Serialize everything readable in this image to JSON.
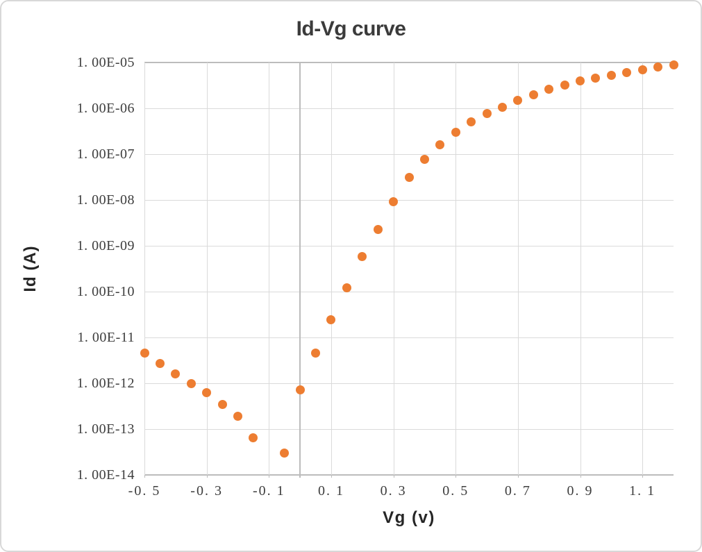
{
  "chart": {
    "title": "Id-Vg curve",
    "y_axis": {
      "title": "Id (A)",
      "scale": "log",
      "tick_labels": [
        "1. 00E-05",
        "1. 00E-06",
        "1. 00E-07",
        "1. 00E-08",
        "1. 00E-09",
        "1. 00E-10",
        "1. 00E-11",
        "1. 00E-12",
        "1. 00E-13",
        "1. 00E-14"
      ]
    },
    "x_axis": {
      "title": "Vg (v)",
      "tick_labels": [
        "-0. 5",
        "-0. 3",
        "-0. 1",
        "0. 1",
        "0. 3",
        "0. 5",
        "0. 7",
        "0. 9",
        "1. 1"
      ]
    }
  },
  "chart_data": {
    "type": "scatter",
    "title": "Id-Vg curve",
    "xlabel": "Vg (v)",
    "ylabel": "Id (A)",
    "x_range": [
      -0.5,
      1.2
    ],
    "x_gridline_interval": 0.2,
    "y_scale": "log",
    "y_range": [
      1e-14,
      1e-05
    ],
    "grid": true,
    "legend": "none",
    "marker_color": "#ED7D31",
    "colors": {
      "gridline": "#DADADA",
      "axis_line": "#BCBCBC",
      "title_text": "#3B3B3B",
      "tick_text": "#3D3D3D"
    },
    "series": [
      {
        "name": "Id",
        "points": [
          [
            -0.5,
            4.6e-12
          ],
          [
            -0.45,
            2.7e-12
          ],
          [
            -0.4,
            1.6e-12
          ],
          [
            -0.35,
            1e-12
          ],
          [
            -0.3,
            6.2e-13
          ],
          [
            -0.25,
            3.5e-13
          ],
          [
            -0.2,
            1.9e-13
          ],
          [
            -0.15,
            6.5e-14
          ],
          [
            -0.05,
            3e-14
          ],
          [
            0.0,
            7.3e-13
          ],
          [
            0.05,
            4.5e-12
          ],
          [
            0.1,
            2.4e-11
          ],
          [
            0.15,
            1.2e-10
          ],
          [
            0.2,
            5.9e-10
          ],
          [
            0.25,
            2.3e-09
          ],
          [
            0.3,
            9.3e-09
          ],
          [
            0.35,
            3.1e-08
          ],
          [
            0.4,
            7.6e-08
          ],
          [
            0.45,
            1.6e-07
          ],
          [
            0.5,
            3e-07
          ],
          [
            0.55,
            5.1e-07
          ],
          [
            0.6,
            7.6e-07
          ],
          [
            0.65,
            1.05e-06
          ],
          [
            0.7,
            1.5e-06
          ],
          [
            0.75,
            2e-06
          ],
          [
            0.8,
            2.6e-06
          ],
          [
            0.85,
            3.2e-06
          ],
          [
            0.9,
            3.9e-06
          ],
          [
            0.95,
            4.5e-06
          ],
          [
            1.0,
            5.2e-06
          ],
          [
            1.05,
            6e-06
          ],
          [
            1.1,
            6.9e-06
          ],
          [
            1.15,
            8e-06
          ],
          [
            1.2,
            8.8e-06
          ]
        ]
      }
    ]
  }
}
